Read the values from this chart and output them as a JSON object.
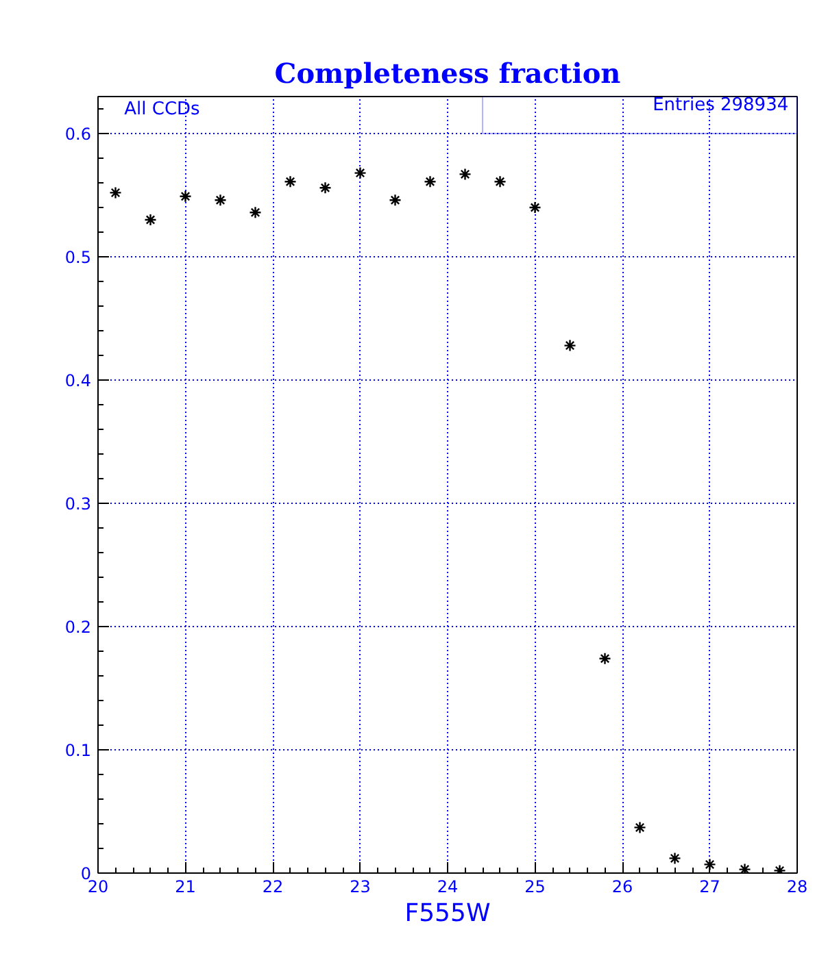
{
  "chart_data": {
    "type": "scatter",
    "title": "Completeness fraction",
    "xlabel": "F555W",
    "x": [
      20.2,
      20.6,
      21.0,
      21.4,
      21.8,
      22.2,
      22.6,
      23.0,
      23.4,
      23.8,
      24.2,
      24.6,
      25.0,
      25.4,
      25.8,
      26.2,
      26.6,
      27.0,
      27.4,
      27.8
    ],
    "series": [
      {
        "color": "#000000",
        "values": [
          0.552,
          0.53,
          0.549,
          0.546,
          0.536,
          0.561,
          0.556,
          0.568,
          0.546,
          0.561,
          0.567,
          0.561,
          0.54,
          0.428,
          0.174,
          0.037,
          0.012,
          0.007,
          0.003,
          0.002
        ]
      }
    ],
    "xlim": [
      20,
      28
    ],
    "ylim": [
      0,
      0.63
    ],
    "xticks": [
      20,
      21,
      22,
      23,
      24,
      25,
      26,
      27,
      28
    ],
    "yticks": [
      0,
      0.1,
      0.2,
      0.3,
      0.4,
      0.5,
      0.6
    ],
    "grid": true,
    "marker": "cross",
    "annotations": [
      "All CCDs",
      "Entries 298934"
    ]
  }
}
